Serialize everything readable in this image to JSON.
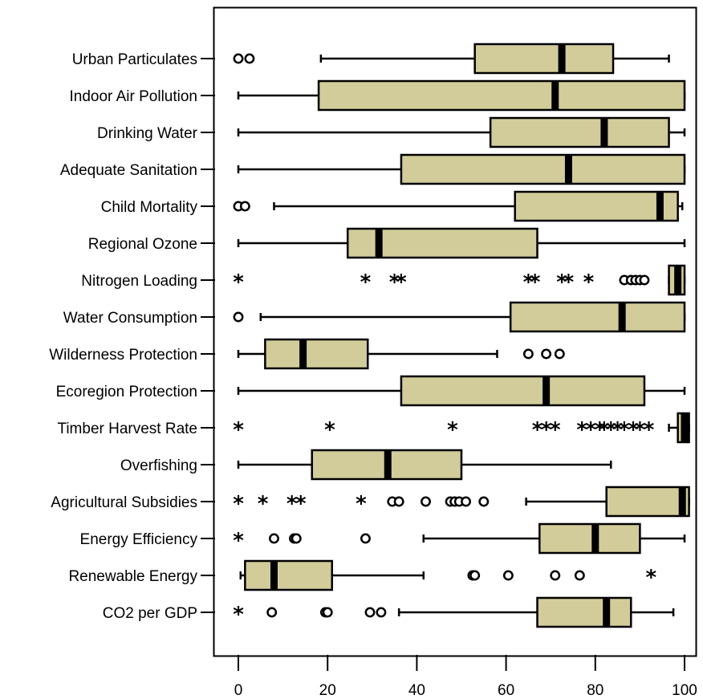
{
  "chart_data": {
    "type": "boxplot",
    "orientation": "horizontal",
    "title": "",
    "xlabel": "",
    "ylabel": "",
    "xlim": [
      0,
      100
    ],
    "xticks": [
      0,
      20,
      40,
      60,
      80,
      100
    ],
    "grid": false,
    "legend": "none",
    "colors": {
      "box_fill": "#d2cc9a",
      "stroke": "#000000",
      "median": "#000000"
    },
    "categories": [
      "Urban Particulates",
      "Indoor Air Pollution",
      "Drinking Water",
      "Adequate Sanitation",
      "Child Mortality",
      "Regional Ozone",
      "Nitrogen Loading",
      "Water Consumption",
      "Wilderness Protection",
      "Ecoregion Protection",
      "Timber Harvest Rate",
      "Overfishing",
      "Agricultural Subsidies",
      "Energy Efficiency",
      "Renewable Energy",
      "CO2 per GDP"
    ],
    "boxes": [
      {
        "whisker_low": 18.5,
        "q1": 53,
        "median": 72.5,
        "q3": 84,
        "whisker_high": 96.5,
        "outliers": [
          0,
          2.5
        ],
        "extremes": []
      },
      {
        "whisker_low": 0,
        "q1": 18,
        "median": 71,
        "q3": 100,
        "whisker_high": 100,
        "outliers": [],
        "extremes": []
      },
      {
        "whisker_low": 0,
        "q1": 56.5,
        "median": 82,
        "q3": 96.5,
        "whisker_high": 100,
        "outliers": [],
        "extremes": []
      },
      {
        "whisker_low": 0,
        "q1": 36.5,
        "median": 74,
        "q3": 100,
        "whisker_high": 100,
        "outliers": [],
        "extremes": []
      },
      {
        "whisker_low": 8,
        "q1": 62,
        "median": 94.5,
        "q3": 98.5,
        "whisker_high": 99.5,
        "outliers": [
          0,
          1.5
        ],
        "extremes": []
      },
      {
        "whisker_low": 0,
        "q1": 24.5,
        "median": 31.5,
        "q3": 67,
        "whisker_high": 100,
        "outliers": [],
        "extremes": []
      },
      {
        "whisker_low": 96.5,
        "q1": 96.5,
        "median": 98.5,
        "q3": 100,
        "whisker_high": 100,
        "outliers": [
          86.5,
          88,
          89,
          90,
          91
        ],
        "extremes": [
          0,
          28.5,
          35,
          36.5,
          65,
          66.5,
          72.5,
          74,
          78.5
        ]
      },
      {
        "whisker_low": 5,
        "q1": 61,
        "median": 86,
        "q3": 100,
        "whisker_high": 100,
        "outliers": [
          0
        ],
        "extremes": []
      },
      {
        "whisker_low": 0,
        "q1": 6,
        "median": 14.5,
        "q3": 29,
        "whisker_high": 58,
        "outliers": [
          65,
          69,
          72
        ],
        "extremes": []
      },
      {
        "whisker_low": 0,
        "q1": 36.5,
        "median": 69,
        "q3": 91,
        "whisker_high": 100,
        "outliers": [],
        "extremes": []
      },
      {
        "whisker_low": 96.5,
        "q1": 98.5,
        "median": 100,
        "q3": 101,
        "whisker_high": 101,
        "outliers": [],
        "extremes": [
          0,
          20.5,
          48,
          67,
          69,
          71,
          77,
          79,
          81,
          82,
          83.5,
          85,
          86.5,
          88.5,
          90,
          92
        ]
      },
      {
        "whisker_low": 0,
        "q1": 16.5,
        "median": 33.5,
        "q3": 50,
        "whisker_high": 83.5,
        "outliers": [],
        "extremes": []
      },
      {
        "whisker_low": 64.5,
        "q1": 82.5,
        "median": 99.5,
        "q3": 101,
        "whisker_high": 101,
        "outliers": [
          34.5,
          36,
          42,
          47.5,
          48.5,
          49.5,
          51,
          55
        ],
        "extremes": [
          0,
          5.5,
          12,
          14,
          27.5
        ]
      },
      {
        "whisker_low": 41.5,
        "q1": 67.5,
        "median": 80,
        "q3": 90,
        "whisker_high": 100,
        "outliers": [
          8,
          12.5,
          13,
          28.5
        ],
        "extremes": [
          0
        ]
      },
      {
        "whisker_low": 0.5,
        "q1": 1.5,
        "median": 8,
        "q3": 21,
        "whisker_high": 41.5,
        "outliers": [
          52.5,
          53,
          60.5,
          71,
          76.5
        ],
        "extremes": [
          92.5
        ]
      },
      {
        "whisker_low": 36,
        "q1": 67,
        "median": 82.5,
        "q3": 88,
        "whisker_high": 97.5,
        "outliers": [
          7.5,
          19.5,
          20,
          29.5,
          32
        ],
        "extremes": [
          0
        ]
      }
    ]
  }
}
